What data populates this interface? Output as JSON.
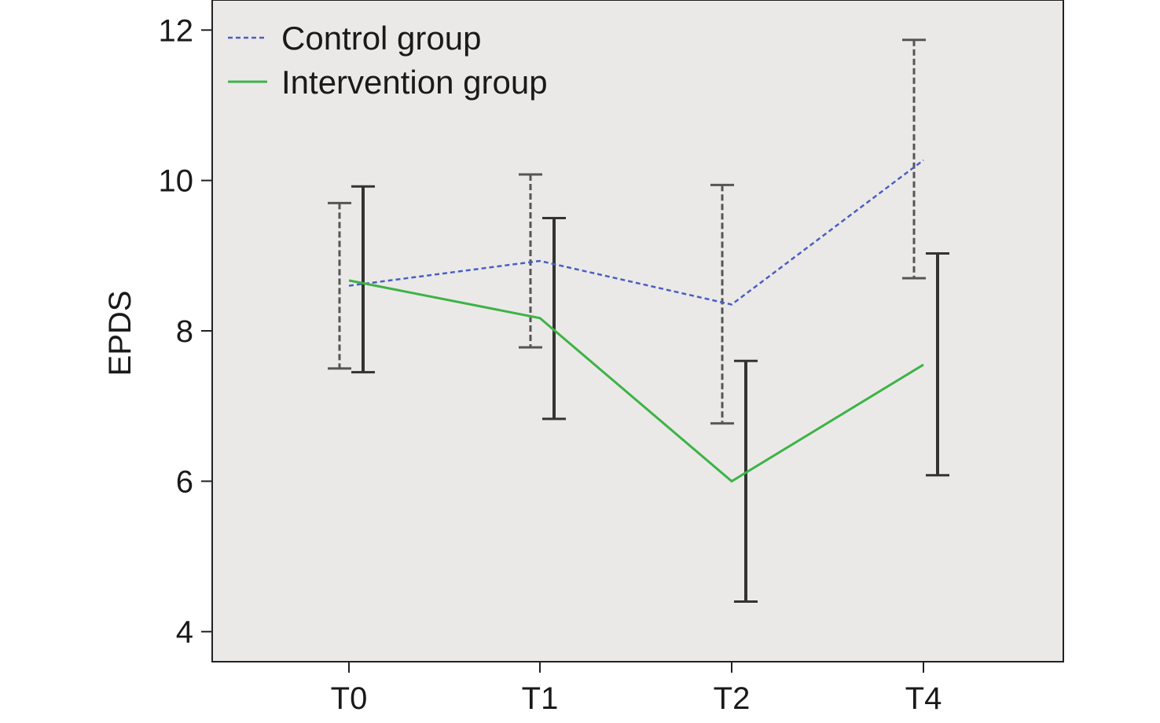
{
  "chart_data": {
    "type": "line",
    "title": "",
    "xlabel": "",
    "ylabel": "EPDS",
    "categories": [
      "T0",
      "T1",
      "T2",
      "T4"
    ],
    "ylim": [
      3.6,
      12.4
    ],
    "yticks": [
      4,
      6,
      8,
      10,
      12
    ],
    "grid": false,
    "legend_position": "top-left",
    "series": [
      {
        "name": "Control group",
        "style": "dashed",
        "color": "#4a5fc1",
        "errorbar_color": "#555555",
        "values": [
          8.6,
          8.93,
          8.35,
          10.27
        ],
        "lower": [
          7.5,
          7.78,
          6.77,
          8.7
        ],
        "upper": [
          9.7,
          10.08,
          9.94,
          11.87
        ]
      },
      {
        "name": "Intervention group",
        "style": "solid",
        "color": "#3db346",
        "errorbar_color": "#333333",
        "values": [
          8.67,
          8.17,
          6.0,
          7.55
        ],
        "lower": [
          7.45,
          6.83,
          4.4,
          6.08
        ],
        "upper": [
          9.92,
          9.5,
          7.6,
          9.03
        ]
      }
    ]
  }
}
